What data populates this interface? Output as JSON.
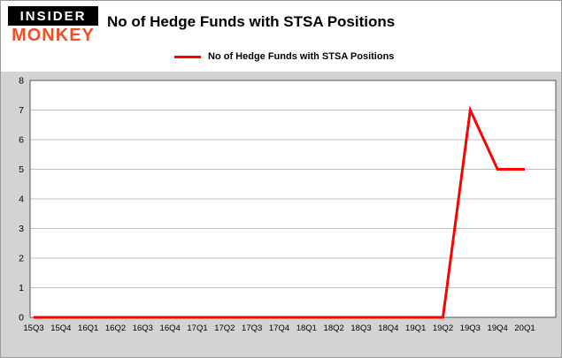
{
  "header": {
    "logo_line1": "INSIDER",
    "logo_line2": "MONKEY",
    "title": "No of Hedge Funds with STSA Positions"
  },
  "legend": {
    "label": "No of Hedge Funds with STSA Positions",
    "line_color": "#ff0000"
  },
  "colors": {
    "line": "#ff0000",
    "plot_background": "#ffffff",
    "outer_background": "#d3d3d3",
    "gridline": "#bfbfbf",
    "plot_border": "#555555",
    "logo_accent": "#f04e23"
  },
  "chart_data": {
    "type": "line",
    "title": "No of Hedge Funds with STSA Positions",
    "categories": [
      "15Q3",
      "15Q4",
      "16Q1",
      "16Q2",
      "16Q3",
      "16Q4",
      "17Q1",
      "17Q2",
      "17Q3",
      "17Q4",
      "18Q1",
      "18Q2",
      "18Q3",
      "18Q4",
      "19Q1",
      "19Q2",
      "19Q3",
      "19Q4",
      "20Q1"
    ],
    "series": [
      {
        "name": "No of Hedge Funds with STSA Positions",
        "color": "#ff0000",
        "values": [
          0,
          0,
          0,
          0,
          0,
          0,
          0,
          0,
          0,
          0,
          0,
          0,
          0,
          0,
          0,
          0,
          7,
          5,
          5
        ]
      }
    ],
    "xlabel": "",
    "ylabel": "",
    "ylim": [
      0,
      8
    ],
    "ytick_step": 1,
    "grid": true,
    "legend_position": "top"
  }
}
